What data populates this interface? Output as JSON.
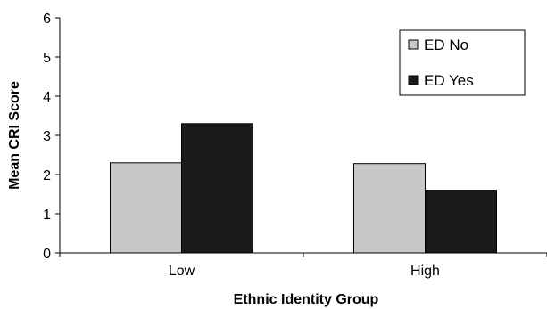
{
  "chart_data": {
    "type": "bar",
    "categories": [
      "Low",
      "High"
    ],
    "series": [
      {
        "name": "ED No",
        "values": [
          2.3,
          2.28
        ],
        "color": "#c8c8c8"
      },
      {
        "name": "ED Yes",
        "values": [
          3.3,
          1.6
        ],
        "color": "#1a1a1a"
      }
    ],
    "title": "",
    "xlabel": "Ethnic Identity Group",
    "ylabel": "Mean CRI Score",
    "ylim": [
      0,
      6
    ],
    "yticks": [
      "0",
      "1",
      "2",
      "3",
      "4",
      "5",
      "6"
    ],
    "grid": false,
    "legend_position": "top-right"
  }
}
